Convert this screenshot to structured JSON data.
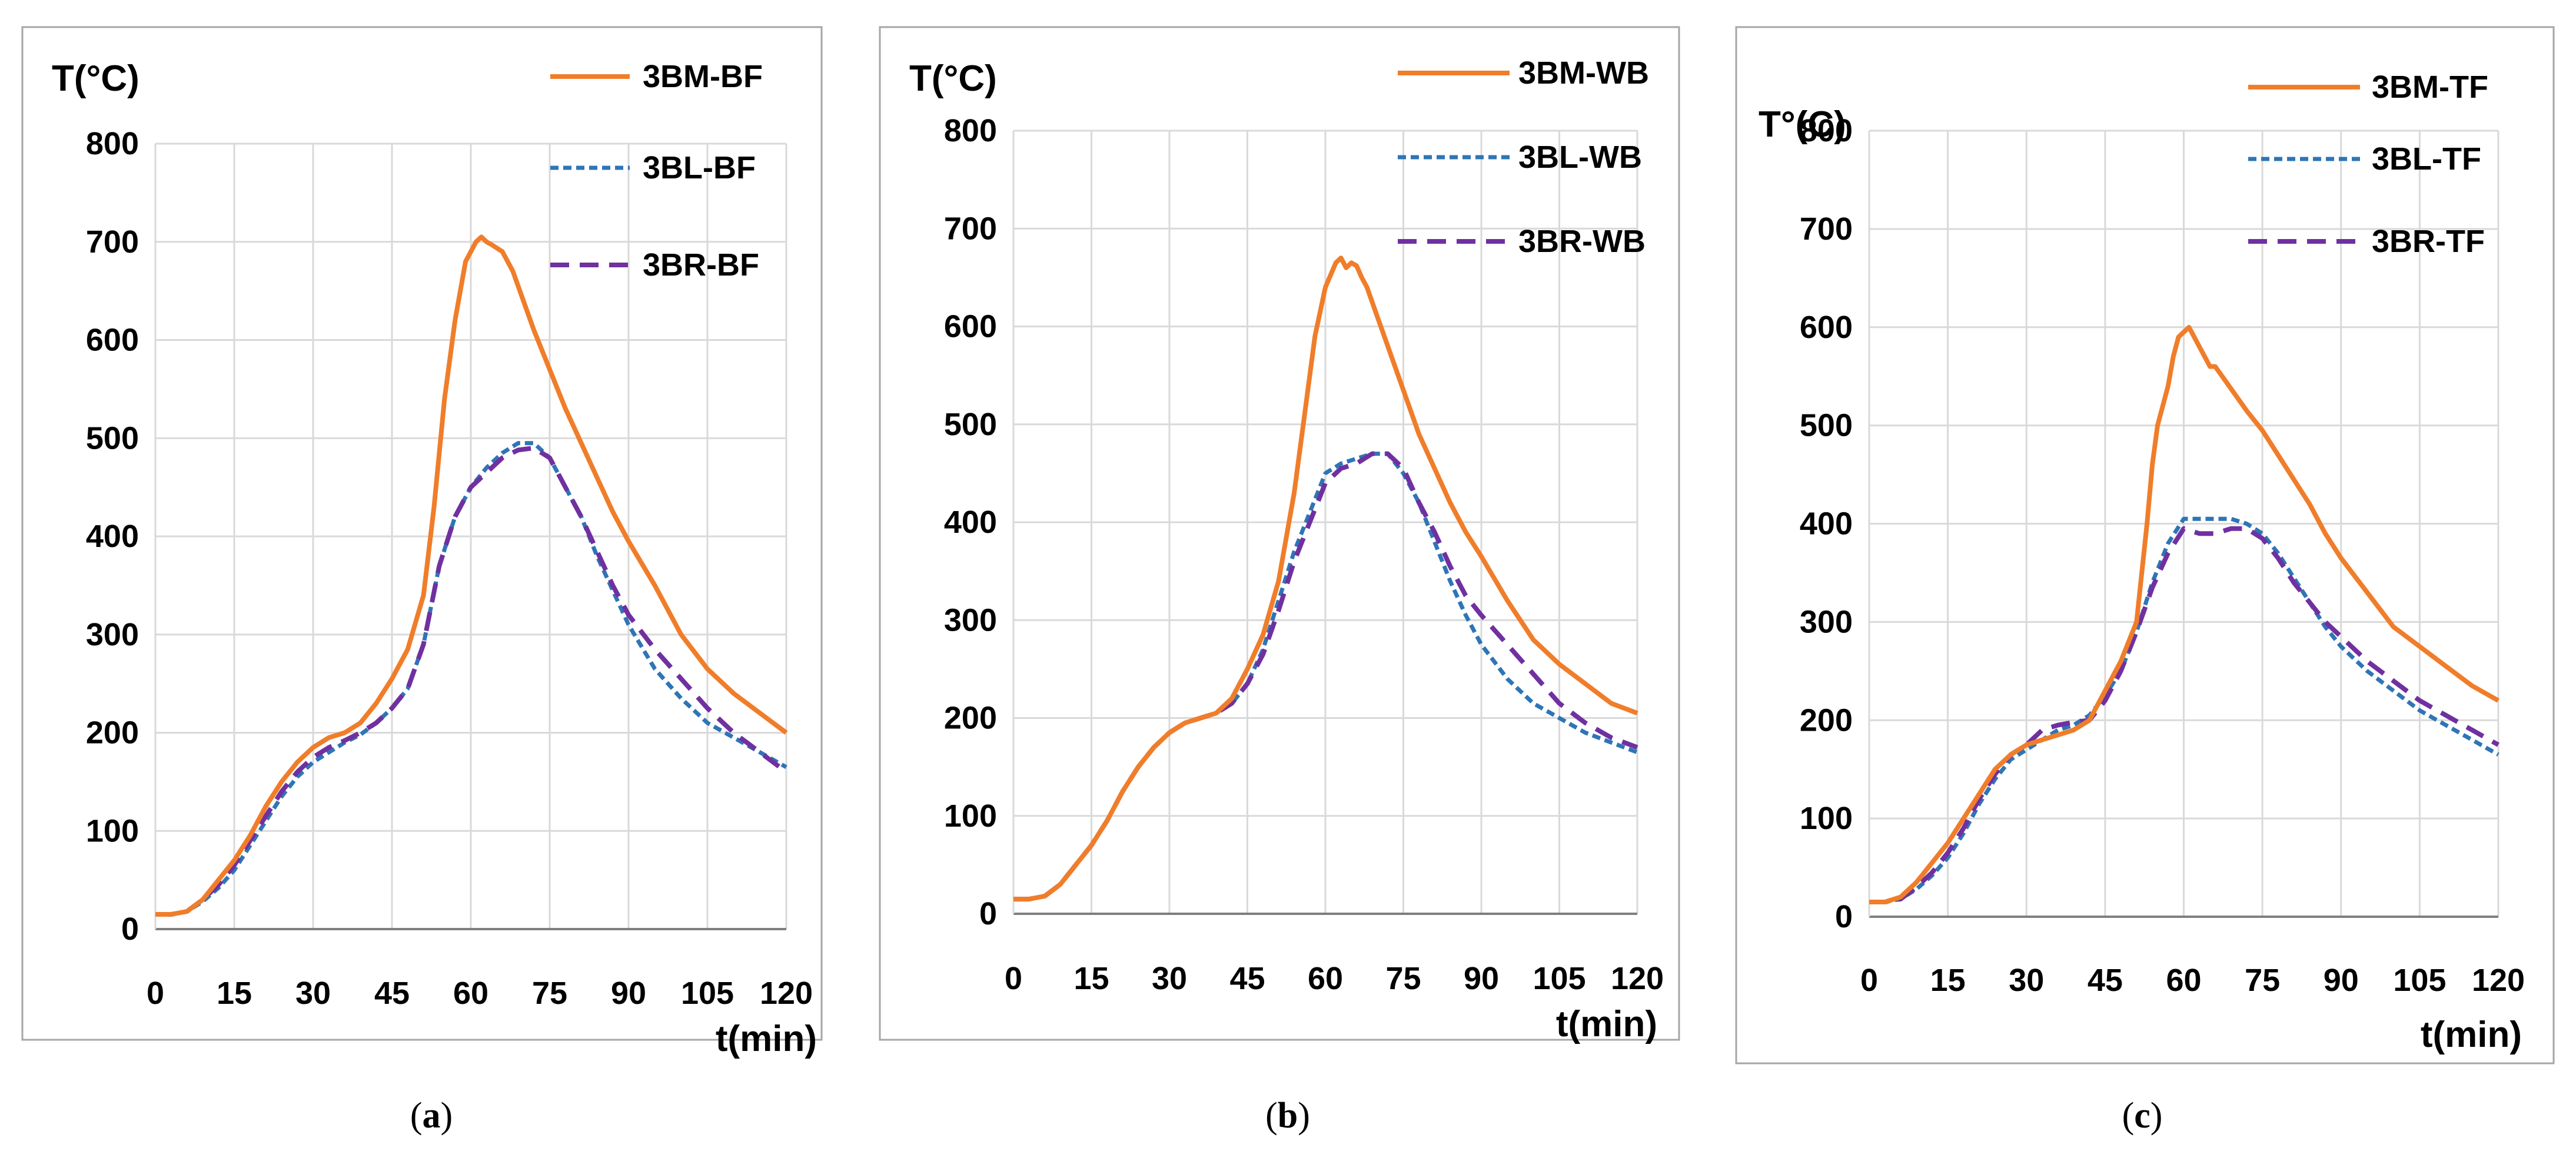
{
  "colors": {
    "BM": "#F07D2A",
    "BL": "#2E75B6",
    "BR": "#7030A0",
    "grid": "#D9D9D9",
    "frame": "#A6A6A6"
  },
  "chart_data": [
    {
      "type": "line",
      "panel_label": "a",
      "ylabel": "T(°C)",
      "xlabel": "t(min)",
      "xlim": [
        0,
        120
      ],
      "ylim": [
        0,
        800
      ],
      "x_ticks": [
        "0",
        "15",
        "30",
        "45",
        "60",
        "75",
        "90",
        "105",
        "120"
      ],
      "y_ticks": [
        "0",
        "100",
        "200",
        "300",
        "400",
        "500",
        "600",
        "700",
        "800"
      ],
      "series": [
        {
          "name": "3BM-BF",
          "style": "solid",
          "color_key": "BM",
          "x": [
            0,
            3,
            6,
            9,
            12,
            15,
            18,
            21,
            24,
            27,
            30,
            33,
            36,
            39,
            42,
            45,
            48,
            51,
            53,
            55,
            57,
            59,
            61,
            62,
            63,
            64,
            66,
            68,
            70,
            72,
            75,
            78,
            81,
            84,
            87,
            90,
            95,
            100,
            105,
            110,
            115,
            120
          ],
          "y": [
            15,
            15,
            18,
            30,
            50,
            70,
            95,
            125,
            150,
            170,
            185,
            195,
            200,
            210,
            230,
            255,
            285,
            340,
            430,
            540,
            620,
            680,
            700,
            705,
            700,
            697,
            690,
            670,
            640,
            610,
            570,
            530,
            495,
            460,
            425,
            395,
            350,
            300,
            265,
            240,
            220,
            200
          ]
        },
        {
          "name": "3BL-BF",
          "style": "dotted",
          "color_key": "BL",
          "x": [
            0,
            3,
            6,
            9,
            12,
            15,
            18,
            21,
            24,
            27,
            30,
            33,
            36,
            39,
            42,
            45,
            48,
            51,
            54,
            57,
            60,
            63,
            66,
            69,
            72,
            75,
            78,
            81,
            84,
            87,
            90,
            95,
            100,
            105,
            110,
            115,
            120
          ],
          "y": [
            15,
            15,
            18,
            28,
            42,
            60,
            85,
            110,
            135,
            155,
            170,
            180,
            190,
            198,
            210,
            225,
            245,
            290,
            370,
            420,
            450,
            470,
            485,
            495,
            495,
            480,
            450,
            420,
            380,
            345,
            310,
            265,
            235,
            210,
            195,
            180,
            165
          ]
        },
        {
          "name": "3BR-BF",
          "style": "dashed",
          "color_key": "BR",
          "x": [
            0,
            3,
            6,
            9,
            12,
            15,
            18,
            21,
            24,
            27,
            30,
            33,
            36,
            39,
            42,
            45,
            48,
            51,
            54,
            57,
            60,
            63,
            66,
            69,
            72,
            75,
            78,
            81,
            84,
            87,
            90,
            95,
            100,
            105,
            110,
            115,
            120
          ],
          "y": [
            15,
            15,
            18,
            30,
            45,
            65,
            90,
            115,
            140,
            160,
            175,
            185,
            192,
            200,
            210,
            225,
            245,
            290,
            370,
            420,
            450,
            465,
            480,
            488,
            490,
            480,
            450,
            420,
            385,
            350,
            320,
            285,
            255,
            225,
            200,
            180,
            160
          ]
        }
      ]
    },
    {
      "type": "line",
      "panel_label": "b",
      "ylabel": "T(°C)",
      "xlabel": "t(min)",
      "xlim": [
        0,
        120
      ],
      "ylim": [
        0,
        800
      ],
      "x_ticks": [
        "0",
        "15",
        "30",
        "45",
        "60",
        "75",
        "90",
        "105",
        "120"
      ],
      "y_ticks": [
        "0",
        "100",
        "200",
        "300",
        "400",
        "500",
        "600",
        "700",
        "800"
      ],
      "series": [
        {
          "name": "3BM-WB",
          "style": "solid",
          "color_key": "BM",
          "x": [
            0,
            3,
            6,
            9,
            12,
            15,
            18,
            21,
            24,
            27,
            30,
            33,
            36,
            39,
            42,
            45,
            48,
            51,
            54,
            56,
            58,
            60,
            62,
            63,
            64,
            65,
            66,
            67,
            68,
            70,
            72,
            75,
            78,
            81,
            84,
            87,
            90,
            95,
            100,
            105,
            110,
            115,
            120
          ],
          "y": [
            15,
            15,
            18,
            30,
            50,
            70,
            95,
            125,
            150,
            170,
            185,
            195,
            200,
            205,
            220,
            250,
            285,
            340,
            430,
            510,
            590,
            640,
            665,
            670,
            660,
            665,
            662,
            650,
            640,
            610,
            580,
            535,
            490,
            455,
            420,
            390,
            365,
            320,
            280,
            255,
            235,
            215,
            205
          ]
        },
        {
          "name": "3BL-WB",
          "style": "dotted",
          "color_key": "BL",
          "x": [
            0,
            3,
            6,
            9,
            12,
            15,
            18,
            21,
            24,
            27,
            30,
            33,
            36,
            39,
            42,
            45,
            48,
            51,
            54,
            57,
            60,
            63,
            66,
            69,
            72,
            75,
            78,
            81,
            84,
            87,
            90,
            95,
            100,
            105,
            110,
            115,
            120
          ],
          "y": [
            15,
            15,
            18,
            30,
            50,
            70,
            95,
            125,
            150,
            170,
            185,
            195,
            200,
            205,
            215,
            235,
            270,
            320,
            370,
            410,
            450,
            460,
            465,
            470,
            470,
            450,
            420,
            380,
            340,
            305,
            275,
            240,
            215,
            200,
            185,
            175,
            165
          ]
        },
        {
          "name": "3BR-WB",
          "style": "dashed",
          "color_key": "BR",
          "x": [
            0,
            3,
            6,
            9,
            12,
            15,
            18,
            21,
            24,
            27,
            30,
            33,
            36,
            39,
            42,
            45,
            48,
            51,
            54,
            57,
            60,
            63,
            66,
            69,
            72,
            75,
            78,
            81,
            84,
            87,
            90,
            95,
            100,
            105,
            110,
            115,
            120
          ],
          "y": [
            15,
            15,
            18,
            30,
            50,
            70,
            95,
            125,
            150,
            170,
            185,
            195,
            200,
            205,
            215,
            235,
            265,
            310,
            360,
            400,
            440,
            455,
            460,
            470,
            470,
            455,
            420,
            390,
            355,
            325,
            305,
            275,
            245,
            215,
            195,
            180,
            170
          ]
        }
      ]
    },
    {
      "type": "line",
      "panel_label": "c",
      "ylabel": "T°(C)",
      "xlabel": "t(min)",
      "xlim": [
        0,
        120
      ],
      "ylim": [
        0,
        800
      ],
      "x_ticks": [
        "0",
        "15",
        "30",
        "45",
        "60",
        "75",
        "90",
        "105",
        "120"
      ],
      "y_ticks": [
        "0",
        "100",
        "200",
        "300",
        "400",
        "500",
        "600",
        "700",
        "800"
      ],
      "series": [
        {
          "name": "3BM-TF",
          "style": "solid",
          "color_key": "BM",
          "x": [
            0,
            3,
            6,
            9,
            12,
            15,
            18,
            21,
            24,
            27,
            30,
            33,
            36,
            39,
            42,
            45,
            48,
            51,
            52,
            53,
            54,
            55,
            56,
            57,
            58,
            59,
            60,
            61,
            62,
            63,
            64,
            65,
            66,
            68,
            70,
            72,
            75,
            78,
            81,
            84,
            87,
            90,
            95,
            100,
            105,
            110,
            115,
            120
          ],
          "y": [
            15,
            15,
            20,
            35,
            55,
            75,
            100,
            125,
            150,
            165,
            175,
            180,
            185,
            190,
            200,
            230,
            260,
            300,
            350,
            400,
            460,
            500,
            520,
            540,
            570,
            590,
            595,
            600,
            590,
            580,
            570,
            560,
            560,
            545,
            530,
            515,
            495,
            470,
            445,
            420,
            390,
            365,
            330,
            295,
            275,
            255,
            235,
            220
          ]
        },
        {
          "name": "3BL-TF",
          "style": "dotted",
          "color_key": "BL",
          "x": [
            0,
            3,
            6,
            9,
            12,
            15,
            18,
            21,
            24,
            27,
            30,
            33,
            36,
            39,
            42,
            45,
            48,
            51,
            54,
            57,
            60,
            63,
            66,
            69,
            72,
            75,
            78,
            81,
            84,
            87,
            90,
            95,
            100,
            105,
            110,
            115,
            120
          ],
          "y": [
            15,
            15,
            18,
            28,
            42,
            60,
            85,
            115,
            140,
            160,
            170,
            180,
            190,
            195,
            205,
            225,
            250,
            290,
            340,
            380,
            405,
            405,
            405,
            405,
            400,
            390,
            370,
            345,
            320,
            295,
            275,
            250,
            230,
            210,
            195,
            180,
            165
          ]
        },
        {
          "name": "3BR-TF",
          "style": "dashed",
          "color_key": "BR",
          "x": [
            0,
            3,
            6,
            9,
            12,
            15,
            18,
            21,
            24,
            27,
            30,
            33,
            36,
            39,
            42,
            45,
            48,
            51,
            54,
            57,
            60,
            63,
            66,
            69,
            72,
            75,
            78,
            81,
            84,
            87,
            90,
            95,
            100,
            105,
            110,
            115,
            120
          ],
          "y": [
            15,
            15,
            18,
            30,
            45,
            65,
            90,
            120,
            145,
            165,
            175,
            190,
            195,
            198,
            200,
            220,
            250,
            290,
            335,
            370,
            395,
            390,
            390,
            395,
            395,
            385,
            365,
            340,
            320,
            300,
            285,
            260,
            240,
            220,
            205,
            190,
            175
          ]
        }
      ]
    }
  ]
}
